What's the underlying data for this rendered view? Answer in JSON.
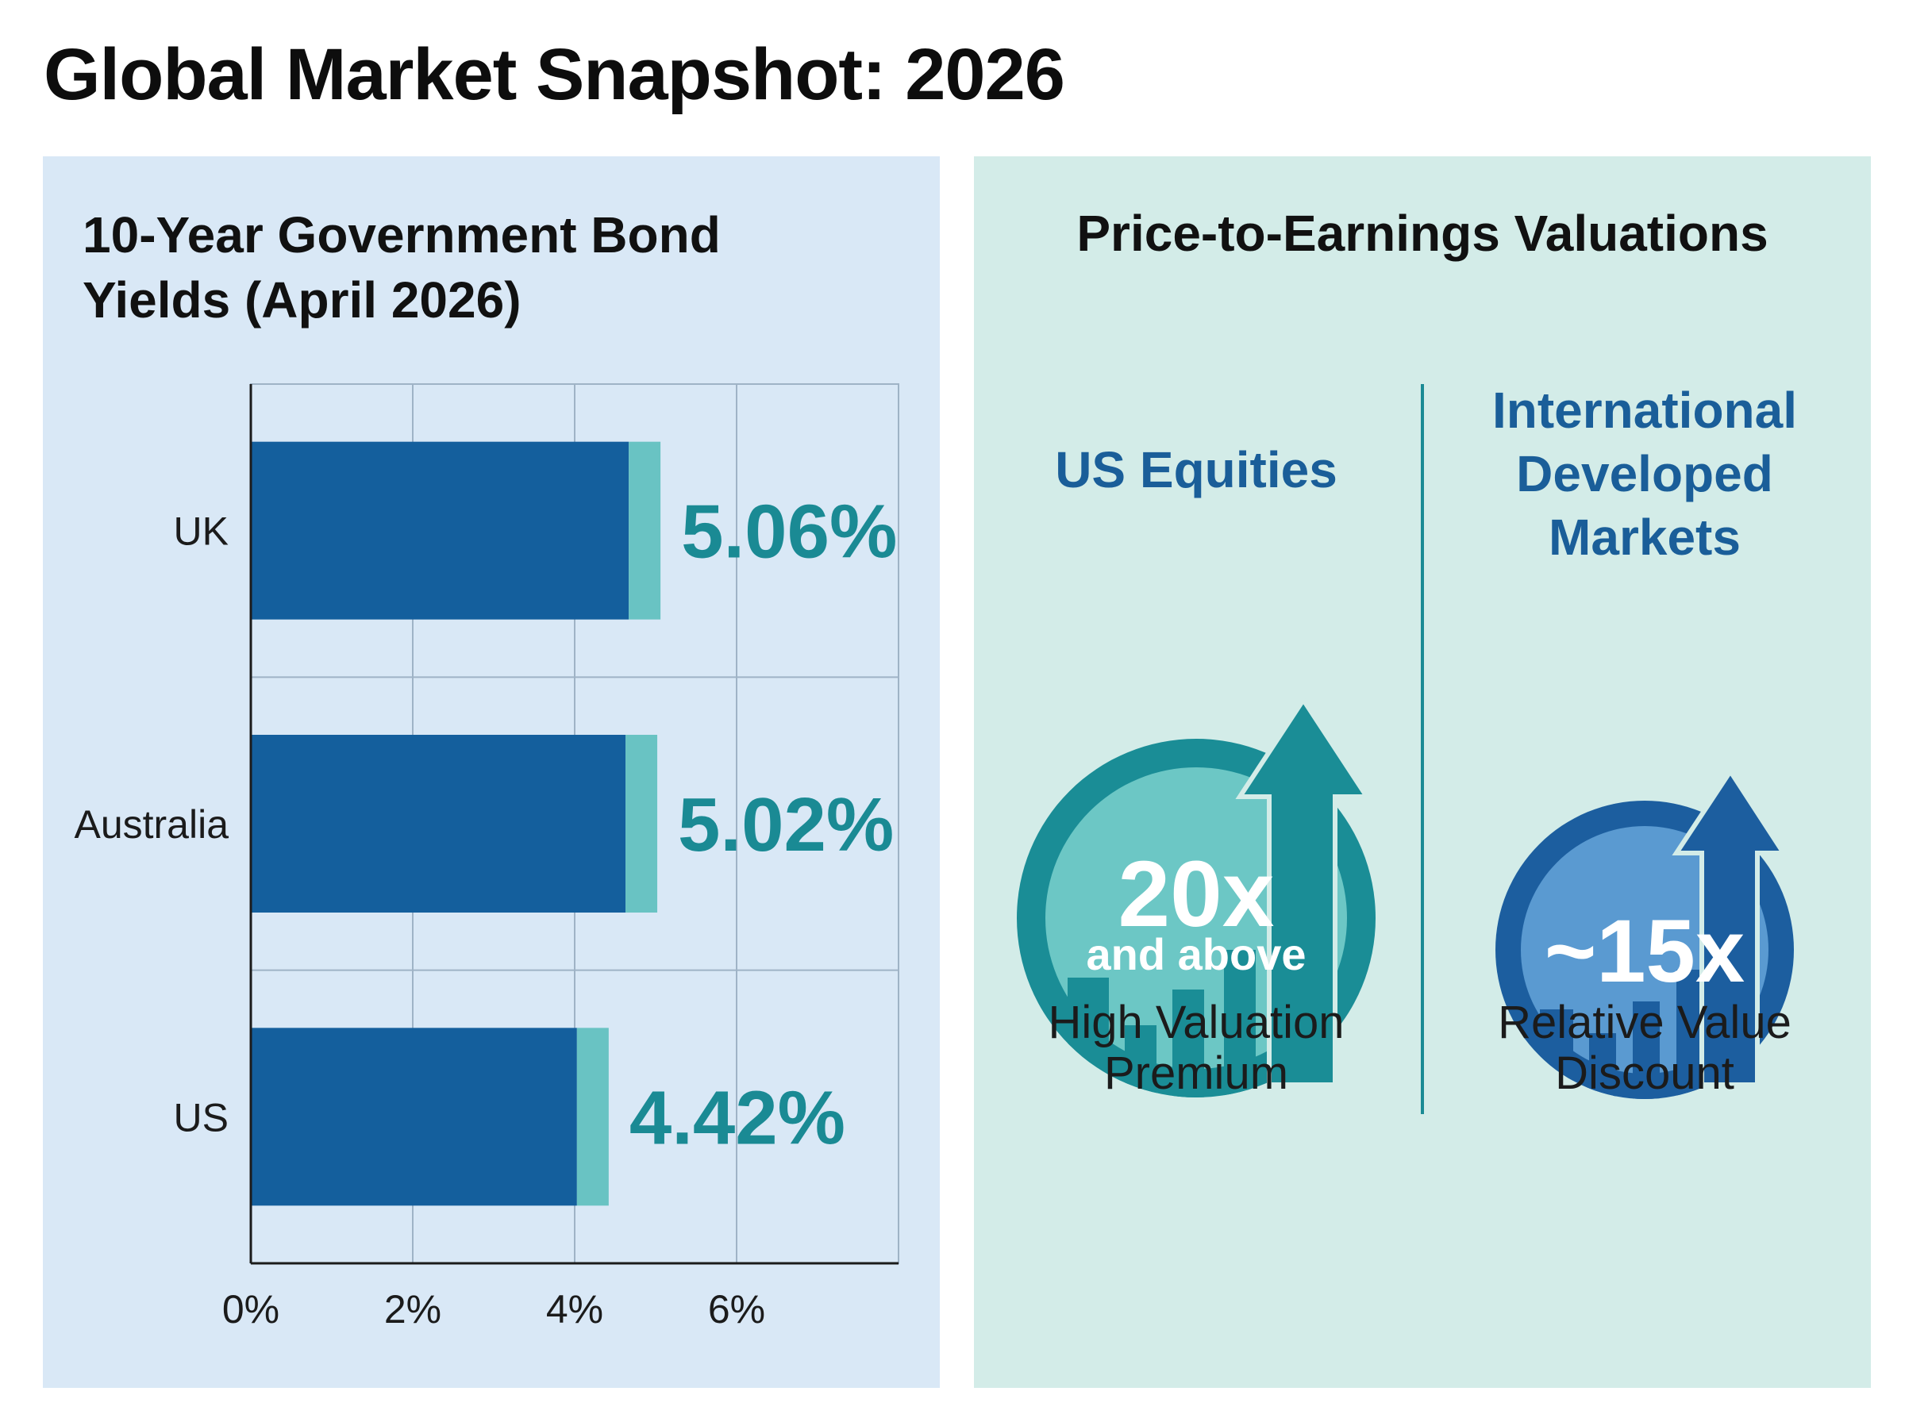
{
  "title": "Global Market Snapshot: 2026",
  "bond_panel": {
    "title_lines": [
      "10-Year Government Bond",
      "Yields (April 2026)"
    ]
  },
  "pe_panel": {
    "title": "Price-to-Earnings Valuations",
    "us": {
      "name_lines": [
        "US Equities"
      ],
      "value": "20x",
      "value_sub": "and above",
      "desc_lines": [
        "High Valuation",
        "Premium"
      ]
    },
    "intl": {
      "name_lines": [
        "International",
        "Developed",
        "Markets"
      ],
      "value": "~15x",
      "desc_lines": [
        "Relative Value",
        "Discount"
      ]
    }
  },
  "colors": {
    "bar_main": "#145f9d",
    "bar_accent": "#69c3c3",
    "value_label": "#1a8a94",
    "us_circle": "#1a8d96",
    "intl_circle": "#1c5e9f"
  },
  "chart_data": {
    "type": "bar",
    "orientation": "horizontal",
    "title": "10-Year Government Bond Yields (April 2026)",
    "categories": [
      "UK",
      "Australia",
      "US"
    ],
    "values": [
      5.06,
      5.02,
      4.42
    ],
    "value_labels": [
      "5.06%",
      "5.02%",
      "4.42%"
    ],
    "x_ticks": [
      0,
      2,
      4,
      6
    ],
    "x_tick_labels": [
      "0%",
      "2%",
      "4%",
      "6%"
    ],
    "xlim": [
      0,
      8
    ],
    "grid": true
  }
}
